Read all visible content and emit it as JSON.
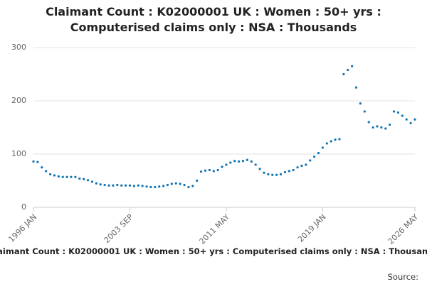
{
  "chart_data": {
    "type": "line",
    "title": "Claimant Count : K02000001 UK : Women : 50+ yrs : Computerised claims only : NSA : Thousands",
    "source_label": "Source:",
    "categories": [
      "1996 JAN",
      null,
      null,
      null,
      null,
      null,
      null,
      null,
      null,
      null,
      null,
      null,
      null,
      null,
      null,
      null,
      null,
      null,
      null,
      null,
      null,
      null,
      null,
      "2003 SEP",
      null,
      null,
      null,
      null,
      null,
      null,
      null,
      null,
      null,
      null,
      null,
      null,
      null,
      null,
      null,
      null,
      null,
      null,
      null,
      null,
      null,
      null,
      "2011 MAY",
      null,
      null,
      null,
      null,
      null,
      null,
      null,
      null,
      null,
      null,
      null,
      null,
      null,
      null,
      null,
      null,
      null,
      null,
      null,
      null,
      null,
      null,
      "2019 JAN",
      null,
      null,
      null,
      null,
      null,
      null,
      null,
      null,
      null,
      null,
      null,
      null,
      null,
      null,
      null,
      null,
      null,
      null,
      null,
      null,
      null,
      "2026 MAY"
    ],
    "series": [
      {
        "name": "Claimant Count",
        "color": "#0f74b4",
        "values": [
          86,
          85,
          75,
          68,
          62,
          60,
          58,
          57,
          57,
          57,
          57,
          54,
          53,
          51,
          48,
          45,
          43,
          42,
          41,
          41,
          42,
          41,
          41,
          41,
          40,
          41,
          40,
          39,
          38,
          38,
          39,
          40,
          42,
          44,
          45,
          44,
          42,
          38,
          40,
          50,
          67,
          69,
          70,
          68,
          70,
          76,
          80,
          84,
          87,
          86,
          87,
          89,
          86,
          80,
          72,
          65,
          62,
          61,
          61,
          62,
          66,
          68,
          70,
          75,
          78,
          80,
          88,
          95,
          102,
          112,
          120,
          124,
          127,
          128,
          250,
          258,
          265,
          225,
          195,
          180,
          160,
          150,
          152,
          150,
          148,
          155,
          180,
          178,
          172,
          165,
          158,
          165
        ]
      }
    ],
    "ylim": [
      0,
      300
    ],
    "yticks": [
      0,
      100,
      200,
      300
    ],
    "grid": true
  }
}
